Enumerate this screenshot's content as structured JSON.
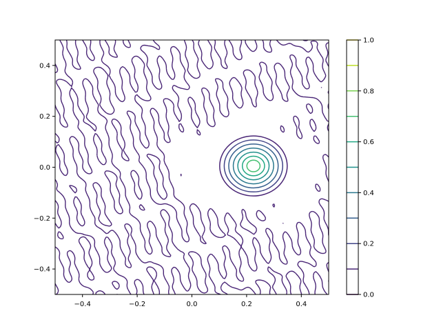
{
  "chart_data": [
    {
      "type": "contour",
      "title": "",
      "xlabel": "",
      "ylabel": "",
      "xlim": [
        -0.5,
        0.5
      ],
      "ylim": [
        -0.5,
        0.5
      ],
      "x_ticks": [
        -0.4,
        -0.2,
        0.0,
        0.2,
        0.4
      ],
      "x_tick_labels": [
        "−0.4",
        "−0.2",
        "0.0",
        "0.2",
        "0.4"
      ],
      "y_ticks": [
        -0.4,
        -0.2,
        0.0,
        0.2,
        0.4
      ],
      "y_tick_labels": [
        "−0.4",
        "−0.2",
        "0.0",
        "0.2",
        "0.4"
      ],
      "grid": false,
      "peak": {
        "x": 0.225,
        "y": 0.005,
        "value": 0.7
      },
      "levels": [
        0.0,
        0.1,
        0.2,
        0.3,
        0.4,
        0.5,
        0.6,
        0.7,
        0.8,
        0.9,
        1.0
      ],
      "colormap": "viridis",
      "noise_contour_level": 0.1,
      "noise_region_description_omitted": true
    }
  ],
  "colorbar": {
    "range": [
      0.0,
      1.0
    ],
    "ticks": [
      0.0,
      0.2,
      0.4,
      0.6,
      0.8,
      1.0
    ],
    "tick_labels": [
      "0.0",
      "0.2",
      "0.4",
      "0.6",
      "0.8",
      "1.0"
    ],
    "level_colors": [
      "#440154",
      "#482475",
      "#414487",
      "#355f8d",
      "#2a788e",
      "#21918c",
      "#22a884",
      "#44bf70",
      "#7ad151",
      "#bddf26",
      "#fde725"
    ]
  },
  "colors": {
    "axis": "#000000",
    "background": "#ffffff"
  }
}
